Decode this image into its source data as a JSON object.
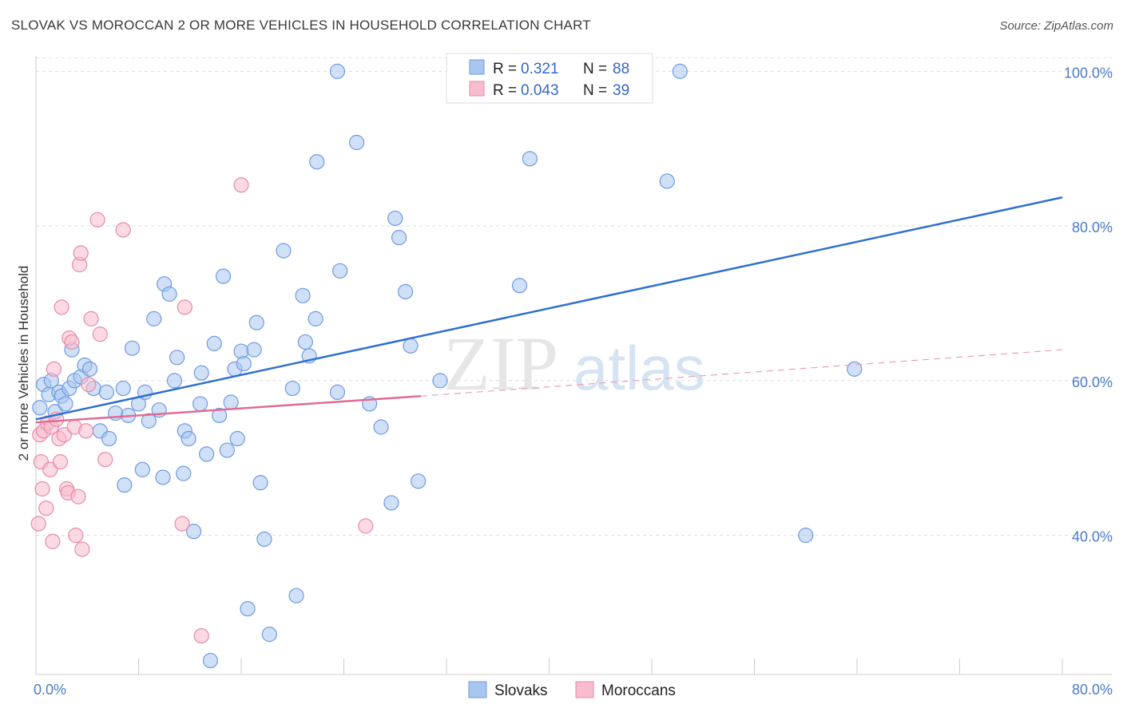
{
  "title": "SLOVAK VS MOROCCAN 2 OR MORE VEHICLES IN HOUSEHOLD CORRELATION CHART",
  "source": "Source: ZipAtlas.com",
  "watermark": {
    "zip": "ZIP",
    "atlas": "atlas"
  },
  "legend_stats": [
    {
      "r_label": "R =",
      "r_value": "0.321",
      "n_label": "N =",
      "n_value": "88",
      "color": "#a8c6f0",
      "stroke": "#6f9be0"
    },
    {
      "r_label": "R =",
      "r_value": "0.043",
      "n_label": "N =",
      "n_value": "39",
      "color": "#f7bccd",
      "stroke": "#e88aa6"
    }
  ],
  "bottom_legend": [
    {
      "label": "Slovaks",
      "color": "#a8c6f0",
      "stroke": "#6f9be0"
    },
    {
      "label": "Moroccans",
      "color": "#f7bccd",
      "stroke": "#e88aa6"
    }
  ],
  "chart_data": {
    "type": "scatter",
    "title": "SLOVAK VS MOROCCAN 2 OR MORE VEHICLES IN HOUSEHOLD CORRELATION CHART",
    "xlabel": "",
    "ylabel": "2 or more Vehicles in Household",
    "xlim": [
      0,
      80
    ],
    "ylim": [
      22,
      102
    ],
    "x_tick_labels": [
      {
        "value": 0,
        "label": "0.0%"
      },
      {
        "value": 80,
        "label": "80.0%"
      }
    ],
    "y_tick_labels": [
      {
        "value": 100,
        "label": "100.0%"
      },
      {
        "value": 80,
        "label": "80.0%"
      },
      {
        "value": 60,
        "label": "60.0%"
      },
      {
        "value": 40,
        "label": "40.0%"
      }
    ],
    "grid": true,
    "legend_position": "top-center",
    "series": [
      {
        "name": "Slovaks",
        "color": "#a8c6f0",
        "stroke": "#6f9be0",
        "trend": {
          "x": [
            0,
            80
          ],
          "y": [
            55.0,
            83.7
          ],
          "color": "#2f6fcf",
          "dashed": false
        },
        "points": [
          [
            0.3,
            56.5
          ],
          [
            0.6,
            59.5
          ],
          [
            1.0,
            58.2
          ],
          [
            1.2,
            60.0
          ],
          [
            1.5,
            56.0
          ],
          [
            1.8,
            58.5
          ],
          [
            2.0,
            58.0
          ],
          [
            2.3,
            57.0
          ],
          [
            2.6,
            59.0
          ],
          [
            3.0,
            60.0
          ],
          [
            2.8,
            64.0
          ],
          [
            3.5,
            60.5
          ],
          [
            3.8,
            62.0
          ],
          [
            4.2,
            61.5
          ],
          [
            4.5,
            59.0
          ],
          [
            5.0,
            53.5
          ],
          [
            5.5,
            58.5
          ],
          [
            5.7,
            52.5
          ],
          [
            6.2,
            55.8
          ],
          [
            6.8,
            59.0
          ],
          [
            6.9,
            46.5
          ],
          [
            7.2,
            55.5
          ],
          [
            7.5,
            64.2
          ],
          [
            8.0,
            57.0
          ],
          [
            8.3,
            48.5
          ],
          [
            8.5,
            58.5
          ],
          [
            8.8,
            54.8
          ],
          [
            9.2,
            68.0
          ],
          [
            9.6,
            56.2
          ],
          [
            9.9,
            47.5
          ],
          [
            10.0,
            72.5
          ],
          [
            10.4,
            71.2
          ],
          [
            10.8,
            60.0
          ],
          [
            11.0,
            63.0
          ],
          [
            11.5,
            48.0
          ],
          [
            11.6,
            53.5
          ],
          [
            11.9,
            52.5
          ],
          [
            12.3,
            40.5
          ],
          [
            12.8,
            57.0
          ],
          [
            12.9,
            61.0
          ],
          [
            13.3,
            50.5
          ],
          [
            13.6,
            23.8
          ],
          [
            13.9,
            64.8
          ],
          [
            14.3,
            55.5
          ],
          [
            14.6,
            73.5
          ],
          [
            14.9,
            51.0
          ],
          [
            15.2,
            57.2
          ],
          [
            15.5,
            61.5
          ],
          [
            15.7,
            52.5
          ],
          [
            16.0,
            63.8
          ],
          [
            16.2,
            62.2
          ],
          [
            16.5,
            30.5
          ],
          [
            17.0,
            64.0
          ],
          [
            17.2,
            67.5
          ],
          [
            17.5,
            46.8
          ],
          [
            17.8,
            39.5
          ],
          [
            18.2,
            27.2
          ],
          [
            19.3,
            76.8
          ],
          [
            20.0,
            59.0
          ],
          [
            20.3,
            32.2
          ],
          [
            20.8,
            71.0
          ],
          [
            21.0,
            65.0
          ],
          [
            21.3,
            63.2
          ],
          [
            21.8,
            68.0
          ],
          [
            21.9,
            88.3
          ],
          [
            23.5,
            58.5
          ],
          [
            23.5,
            100.0
          ],
          [
            23.7,
            74.2
          ],
          [
            25.0,
            90.8
          ],
          [
            26.0,
            57.0
          ],
          [
            26.9,
            54.0
          ],
          [
            27.7,
            44.2
          ],
          [
            28.0,
            81.0
          ],
          [
            28.3,
            78.5
          ],
          [
            28.8,
            71.5
          ],
          [
            29.2,
            64.5
          ],
          [
            29.8,
            47.0
          ],
          [
            31.5,
            60.0
          ],
          [
            37.7,
            72.3
          ],
          [
            38.1,
            100.0
          ],
          [
            38.5,
            88.7
          ],
          [
            49.2,
            85.8
          ],
          [
            50.2,
            100.0
          ],
          [
            60.0,
            40.0
          ],
          [
            63.8,
            61.5
          ]
        ]
      },
      {
        "name": "Moroccans",
        "color": "#f7bccd",
        "stroke": "#e88aa6",
        "trend": {
          "x": [
            0,
            30
          ],
          "y": [
            54.6,
            58.0
          ],
          "color": "#e06b95",
          "dashed": false
        },
        "trend_ext": {
          "x": [
            30,
            80
          ],
          "y": [
            58.0,
            64.0
          ],
          "color": "#e8a0b8",
          "dashed": true
        },
        "points": [
          [
            0.2,
            41.5
          ],
          [
            0.3,
            53.0
          ],
          [
            0.4,
            49.5
          ],
          [
            0.5,
            46.0
          ],
          [
            0.6,
            53.5
          ],
          [
            0.8,
            43.5
          ],
          [
            0.9,
            54.5
          ],
          [
            1.1,
            48.5
          ],
          [
            1.2,
            54.0
          ],
          [
            1.3,
            39.2
          ],
          [
            1.4,
            61.5
          ],
          [
            1.6,
            55.0
          ],
          [
            1.8,
            52.5
          ],
          [
            1.9,
            49.5
          ],
          [
            2.0,
            69.5
          ],
          [
            2.2,
            53.0
          ],
          [
            2.4,
            46.0
          ],
          [
            2.5,
            45.5
          ],
          [
            2.6,
            65.5
          ],
          [
            2.8,
            65.0
          ],
          [
            3.0,
            54.0
          ],
          [
            3.1,
            40.0
          ],
          [
            3.3,
            45.0
          ],
          [
            3.4,
            75.0
          ],
          [
            3.5,
            76.5
          ],
          [
            3.6,
            38.2
          ],
          [
            3.9,
            53.5
          ],
          [
            4.1,
            59.5
          ],
          [
            4.3,
            68.0
          ],
          [
            4.8,
            80.8
          ],
          [
            5.0,
            66.0
          ],
          [
            5.4,
            49.8
          ],
          [
            6.8,
            79.5
          ],
          [
            11.4,
            41.5
          ],
          [
            11.6,
            69.5
          ],
          [
            12.9,
            27.0
          ],
          [
            16.0,
            85.3
          ],
          [
            25.7,
            41.2
          ]
        ]
      }
    ]
  }
}
